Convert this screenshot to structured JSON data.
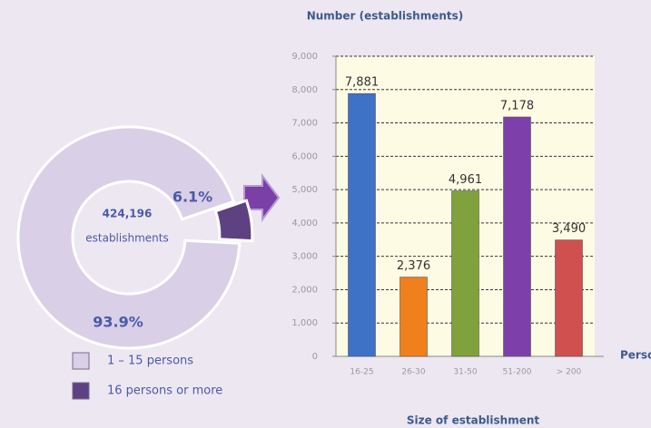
{
  "chart_data": [
    {
      "type": "pie",
      "categories": [
        "1 – 15 persons",
        "16 persons or more"
      ],
      "values": [
        93.9,
        6.1
      ],
      "value_labels": [
        "93.9%",
        "6.1%"
      ],
      "colors": [
        "#d9cfe6",
        "#5d4180"
      ],
      "annotations": [
        "424,196",
        "establishments"
      ]
    },
    {
      "type": "bar",
      "title": "Number (establishments)",
      "x_label": "Size of establishment",
      "x_unit": "Persons",
      "categories": [
        "16-25",
        "26-30",
        "31-50",
        "51-200",
        "> 200"
      ],
      "values": [
        7881,
        2376,
        4961,
        7178,
        3490
      ],
      "value_labels": [
        "7,881",
        "2,376",
        "4,961",
        "7,178",
        "3,490"
      ],
      "colors": [
        "#3d72c6",
        "#f0801c",
        "#7fa23c",
        "#7d40aa",
        "#d05050"
      ],
      "ylim": [
        0,
        9000
      ],
      "yticks": [
        0,
        {
          "value": 1000,
          "label": "1,000"
        },
        {
          "value": 2000,
          "label": "2,000"
        },
        {
          "value": 3000,
          "label": "3,000"
        },
        {
          "value": 4000,
          "label": "4,000"
        },
        {
          "value": 5000,
          "label": "5,000"
        },
        {
          "value": 6000,
          "label": "6,000"
        },
        {
          "value": 7000,
          "label": "7,000"
        },
        {
          "value": 8000,
          "label": "8,000"
        },
        {
          "value": 9000,
          "label": "9,000"
        }
      ],
      "grid": true
    }
  ]
}
